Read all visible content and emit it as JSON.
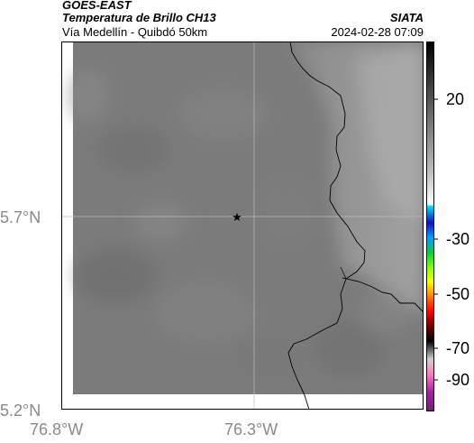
{
  "header": {
    "title_line1": "GOES-EAST",
    "title_line2": "Temperatura de Brillo CH13",
    "subtitle": "Vía Medellín - Quibdó 50km",
    "organization": "SIATA",
    "datetime": "2024-02-28 07:09"
  },
  "axes": {
    "lat_labels": [
      "5.7°N",
      "5.2°N"
    ],
    "lon_labels": [
      "76.8°W",
      "76.3°W"
    ]
  },
  "colorbar": {
    "tick_labels": [
      "20",
      "-30",
      "-50",
      "-70",
      "-90"
    ]
  },
  "map": {
    "marker_icon": "star-icon",
    "land_color": "#7b7b7b",
    "coast_color": "#a3a3a3"
  }
}
